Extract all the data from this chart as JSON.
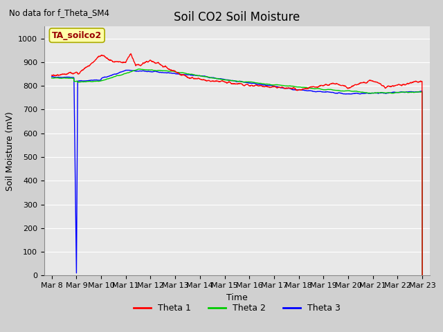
{
  "title": "Soil CO2 Soil Moisture",
  "ylabel": "Soil Moisture (mV)",
  "xlabel": "Time",
  "no_data_label": "No data for f_Theta_SM4",
  "annotation_label": "TA_soilco2",
  "ylim": [
    0,
    1050
  ],
  "yticks": [
    0,
    100,
    200,
    300,
    400,
    500,
    600,
    700,
    800,
    900,
    1000
  ],
  "xtick_labels": [
    "Mar 8",
    "Mar 9",
    "Mar 10",
    "Mar 11",
    "Mar 12",
    "Mar 13",
    "Mar 14",
    "Mar 15",
    "Mar 16",
    "Mar 17",
    "Mar 18",
    "Mar 19",
    "Mar 20",
    "Mar 21",
    "Mar 22",
    "Mar 23"
  ],
  "plot_bg_color": "#e8e8e8",
  "fig_bg_color": "#d0d0d0",
  "grid_color": "#ffffff",
  "legend_colors": [
    "#ff0000",
    "#00cc00",
    "#0000ff"
  ],
  "title_fontsize": 12,
  "axis_label_fontsize": 9,
  "tick_fontsize": 8,
  "annotation_facecolor": "#ffffaa",
  "annotation_edgecolor": "#aaaa00"
}
